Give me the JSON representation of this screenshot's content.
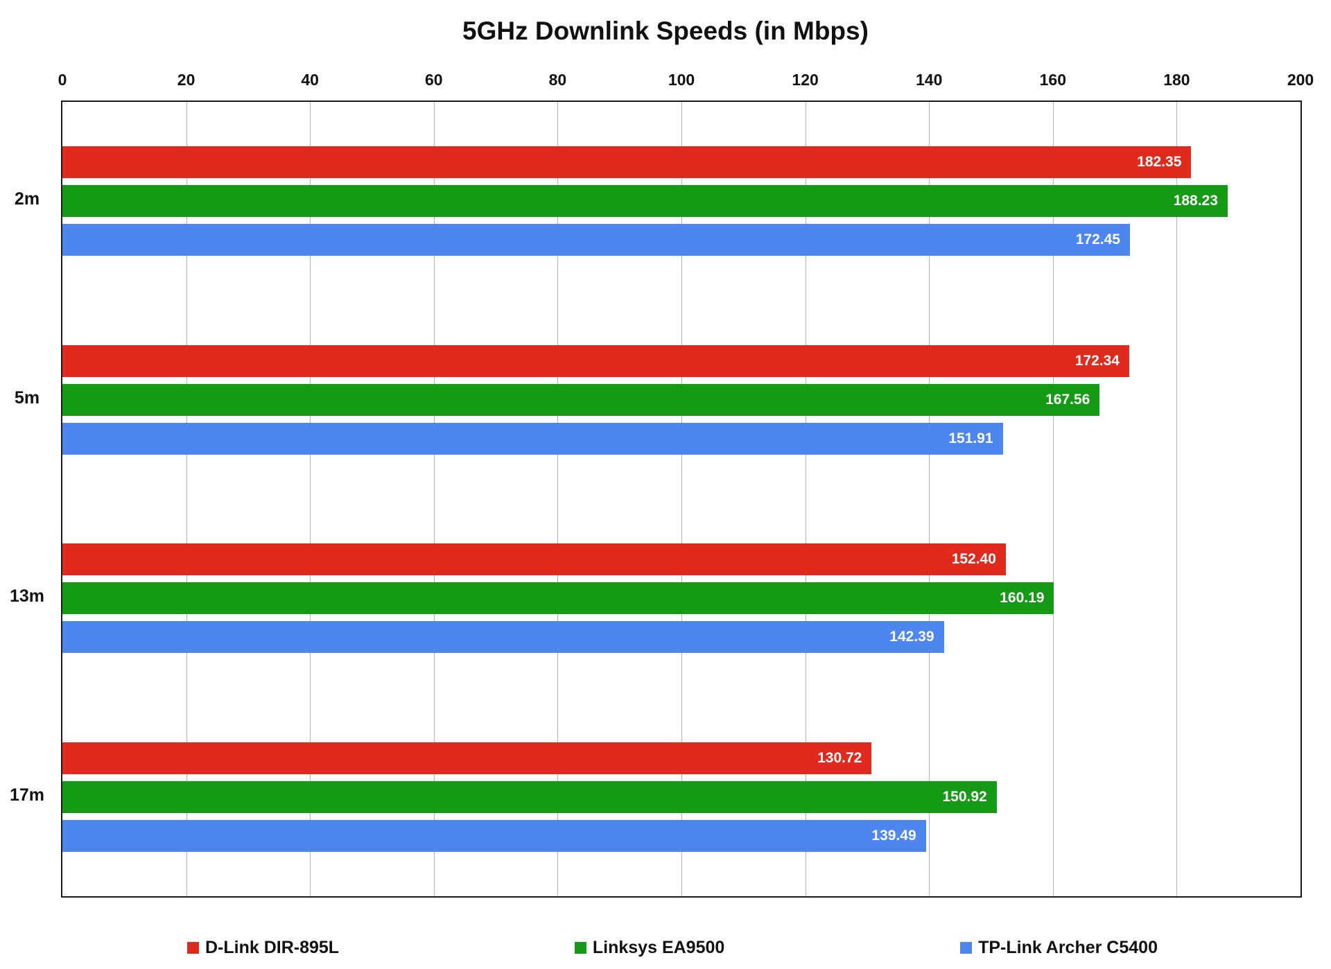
{
  "chart_data": {
    "type": "bar",
    "orientation": "horizontal",
    "title": "5GHz Downlink Speeds (in Mbps)",
    "categories": [
      "2m",
      "5m",
      "13m",
      "17m"
    ],
    "series": [
      {
        "name": "D-Link DIR-895L",
        "color": "#e02a1d",
        "values": [
          182.35,
          172.34,
          152.4,
          130.72
        ]
      },
      {
        "name": "Linksys EA9500",
        "color": "#149a14",
        "values": [
          188.23,
          167.56,
          160.19,
          150.92
        ]
      },
      {
        "name": "TP-Link Archer C5400",
        "color": "#4e86f0",
        "values": [
          172.45,
          151.91,
          142.39,
          139.49
        ]
      }
    ],
    "x_axis": {
      "min": 0,
      "max": 200,
      "tick_interval": 20,
      "position": "top",
      "ticks": [
        0,
        20,
        40,
        60,
        80,
        100,
        120,
        140,
        160,
        180,
        200
      ]
    },
    "grid": true,
    "legend_position": "bottom",
    "value_label_format": "fixed-2-decimals",
    "value_label_color": "#ffffff",
    "plot_border_color": "#1a1a1a",
    "gridline_color": "#b3b3b3"
  }
}
